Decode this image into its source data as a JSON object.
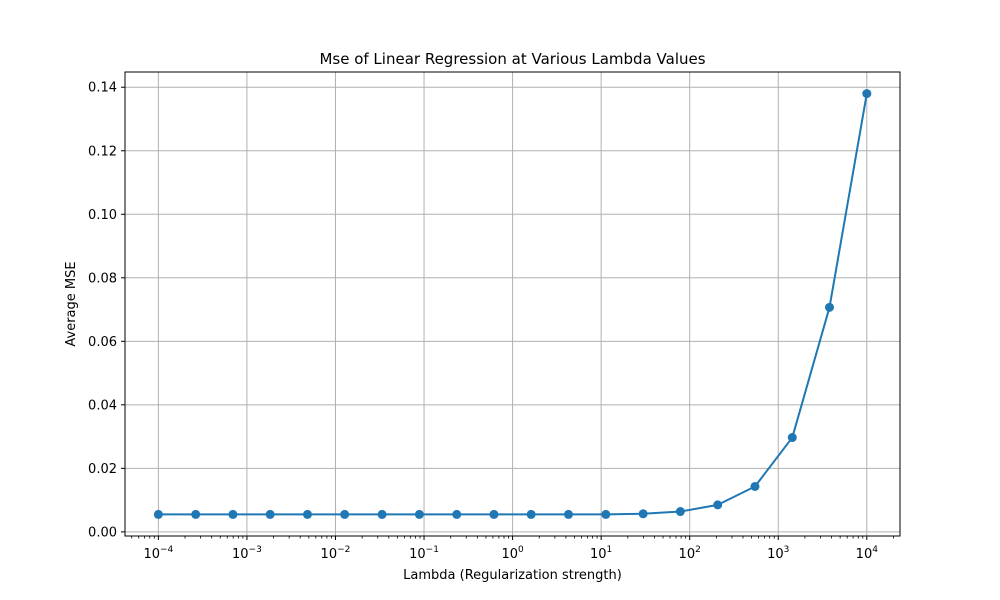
{
  "chart_data": {
    "type": "line",
    "title": "Mse of Linear Regression at Various Lambda Values",
    "xlabel": "Lambda (Regularization strength)",
    "ylabel": "Average MSE",
    "xscale": "log",
    "xlim": [
      4.2e-05,
      23700
    ],
    "ylim": [
      -0.0013,
      0.1448
    ],
    "grid": true,
    "line_color": "#1f77b4",
    "x_ticks": [
      {
        "value": 0.0001,
        "base": "10",
        "exp": "−4"
      },
      {
        "value": 0.001,
        "base": "10",
        "exp": "−3"
      },
      {
        "value": 0.01,
        "base": "10",
        "exp": "−2"
      },
      {
        "value": 0.1,
        "base": "10",
        "exp": "−1"
      },
      {
        "value": 1,
        "base": "10",
        "exp": "0"
      },
      {
        "value": 10,
        "base": "10",
        "exp": "1"
      },
      {
        "value": 100,
        "base": "10",
        "exp": "2"
      },
      {
        "value": 1000,
        "base": "10",
        "exp": "3"
      },
      {
        "value": 10000,
        "base": "10",
        "exp": "4"
      }
    ],
    "y_ticks": [
      {
        "value": 0.0,
        "label": "0.00"
      },
      {
        "value": 0.02,
        "label": "0.02"
      },
      {
        "value": 0.04,
        "label": "0.04"
      },
      {
        "value": 0.06,
        "label": "0.06"
      },
      {
        "value": 0.08,
        "label": "0.08"
      },
      {
        "value": 0.1,
        "label": "0.10"
      },
      {
        "value": 0.12,
        "label": "0.12"
      },
      {
        "value": 0.14,
        "label": "0.14"
      }
    ],
    "x": [
      0.0001,
      0.000264,
      0.000695,
      0.00183,
      0.00483,
      0.0127,
      0.0336,
      0.0886,
      0.234,
      0.616,
      1.62,
      4.28,
      11.3,
      29.8,
      78.5,
      207,
      546,
      1440,
      3790,
      10000
    ],
    "series": [
      {
        "values": [
          0.0055,
          0.0055,
          0.0055,
          0.0055,
          0.0055,
          0.0055,
          0.0055,
          0.0055,
          0.0055,
          0.0055,
          0.0055,
          0.0055,
          0.0055,
          0.0057,
          0.0064,
          0.0085,
          0.0143,
          0.0297,
          0.0707,
          0.138
        ]
      }
    ]
  }
}
